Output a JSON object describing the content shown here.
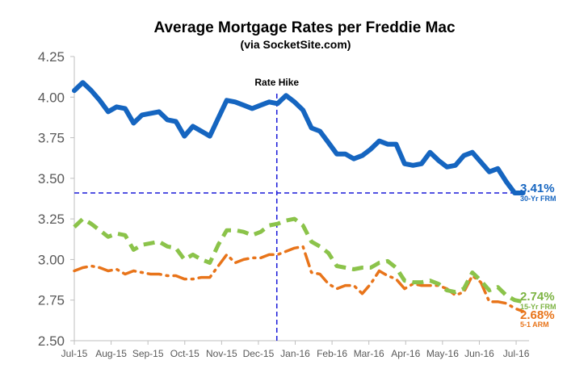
{
  "chart_data": {
    "type": "line",
    "title": "Average Mortgage Rates per Freddie Mac",
    "subtitle": "(via SocketSite.com)",
    "ylim": [
      2.5,
      4.25
    ],
    "yticks": [
      "2.50",
      "2.75",
      "3.00",
      "3.25",
      "3.50",
      "3.75",
      "4.00",
      "4.25"
    ],
    "ytick_values": [
      2.5,
      2.75,
      3.0,
      3.25,
      3.5,
      3.75,
      4.0,
      4.25
    ],
    "xlim": [
      0,
      12.35
    ],
    "x_categories": [
      "Jul-15",
      "Aug-15",
      "Sep-15",
      "Oct-15",
      "Nov-15",
      "Dec-15",
      "Jan-16",
      "Feb-16",
      "Mar-16",
      "Apr-16",
      "May-16",
      "Jun-16",
      "Jul-16"
    ],
    "grid": false,
    "series": [
      {
        "name": "30-Yr FRM",
        "color": "#1565C0",
        "style": "solid",
        "x": [
          0.0,
          0.23,
          0.46,
          0.69,
          0.92,
          1.15,
          1.38,
          1.61,
          1.84,
          2.07,
          2.3,
          2.53,
          2.76,
          2.99,
          3.22,
          3.45,
          3.68,
          3.91,
          4.14,
          4.37,
          4.6,
          4.83,
          5.06,
          5.29,
          5.52,
          5.75,
          5.98,
          6.21,
          6.44,
          6.67,
          6.9,
          7.13,
          7.36,
          7.59,
          7.82,
          8.05,
          8.28,
          8.51,
          8.74,
          8.97,
          9.2,
          9.43,
          9.66,
          9.89,
          10.12,
          10.35,
          10.58,
          10.81,
          11.04,
          11.27,
          11.5,
          11.73,
          11.96,
          12.19
        ],
        "values": [
          4.04,
          4.09,
          4.04,
          3.98,
          3.91,
          3.94,
          3.93,
          3.84,
          3.89,
          3.9,
          3.91,
          3.86,
          3.85,
          3.76,
          3.82,
          3.79,
          3.76,
          3.87,
          3.98,
          3.97,
          3.95,
          3.93,
          3.95,
          3.97,
          3.96,
          4.01,
          3.97,
          3.92,
          3.81,
          3.79,
          3.72,
          3.65,
          3.65,
          3.62,
          3.64,
          3.68,
          3.73,
          3.71,
          3.71,
          3.59,
          3.58,
          3.59,
          3.66,
          3.61,
          3.57,
          3.58,
          3.64,
          3.66,
          3.6,
          3.54,
          3.56,
          3.48,
          3.41,
          3.41
        ]
      },
      {
        "name": "15-Yr FRM",
        "color": "#8BC34A",
        "style": "dashed",
        "x": [
          0.0,
          0.23,
          0.46,
          0.69,
          0.92,
          1.15,
          1.38,
          1.61,
          1.84,
          2.07,
          2.3,
          2.53,
          2.76,
          2.99,
          3.22,
          3.45,
          3.68,
          3.91,
          4.14,
          4.37,
          4.6,
          4.83,
          5.06,
          5.29,
          5.52,
          5.75,
          5.98,
          6.21,
          6.44,
          6.67,
          6.9,
          7.13,
          7.36,
          7.59,
          7.82,
          8.05,
          8.28,
          8.51,
          8.74,
          8.97,
          9.2,
          9.43,
          9.66,
          9.89,
          10.12,
          10.35,
          10.58,
          10.81,
          11.04,
          11.27,
          11.5,
          11.73,
          11.96,
          12.19
        ],
        "values": [
          3.2,
          3.25,
          3.22,
          3.18,
          3.14,
          3.16,
          3.15,
          3.06,
          3.09,
          3.1,
          3.11,
          3.08,
          3.07,
          3.0,
          3.03,
          3.0,
          2.98,
          3.09,
          3.18,
          3.18,
          3.17,
          3.15,
          3.17,
          3.21,
          3.22,
          3.24,
          3.25,
          3.21,
          3.11,
          3.08,
          3.04,
          2.96,
          2.95,
          2.94,
          2.95,
          2.95,
          2.98,
          2.99,
          2.95,
          2.87,
          2.86,
          2.86,
          2.87,
          2.85,
          2.81,
          2.8,
          2.82,
          2.92,
          2.87,
          2.81,
          2.83,
          2.78,
          2.75,
          2.74
        ]
      },
      {
        "name": "5-1 ARM",
        "color": "#E8741A",
        "style": "dash-dot",
        "x": [
          0.0,
          0.23,
          0.46,
          0.69,
          0.92,
          1.15,
          1.38,
          1.61,
          1.84,
          2.07,
          2.3,
          2.53,
          2.76,
          2.99,
          3.22,
          3.45,
          3.68,
          3.91,
          4.14,
          4.37,
          4.6,
          4.83,
          5.06,
          5.29,
          5.52,
          5.75,
          5.98,
          6.21,
          6.44,
          6.67,
          6.9,
          7.13,
          7.36,
          7.59,
          7.82,
          8.05,
          8.28,
          8.51,
          8.74,
          8.97,
          9.2,
          9.43,
          9.66,
          9.89,
          10.12,
          10.35,
          10.58,
          10.81,
          11.04,
          11.27,
          11.5,
          11.73,
          11.96,
          12.19
        ],
        "values": [
          2.93,
          2.95,
          2.96,
          2.95,
          2.93,
          2.94,
          2.91,
          2.93,
          2.92,
          2.91,
          2.91,
          2.9,
          2.9,
          2.88,
          2.88,
          2.89,
          2.89,
          2.96,
          3.03,
          2.98,
          3.0,
          3.01,
          3.01,
          3.03,
          3.03,
          3.05,
          3.07,
          3.08,
          2.92,
          2.91,
          2.85,
          2.82,
          2.84,
          2.84,
          2.79,
          2.85,
          2.93,
          2.9,
          2.88,
          2.82,
          2.85,
          2.84,
          2.84,
          2.84,
          2.82,
          2.78,
          2.8,
          2.9,
          2.86,
          2.74,
          2.74,
          2.73,
          2.7,
          2.68
        ]
      }
    ],
    "reference_lines": [
      {
        "axis": "x",
        "value": 5.5,
        "label": "Rate Hike",
        "color": "#1A1AD9",
        "style": "dashed"
      },
      {
        "axis": "y",
        "value": 3.41,
        "color": "#1A1AD9",
        "style": "dashed"
      }
    ],
    "end_labels": [
      {
        "series": "30-Yr FRM",
        "value_text": "3.41%",
        "name_text": "30-Yr FRM",
        "color": "#1565C0"
      },
      {
        "series": "15-Yr FRM",
        "value_text": "2.74%",
        "name_text": "15-Yr FRM",
        "color": "#7CB342"
      },
      {
        "series": "5-1 ARM",
        "value_text": "2.68%",
        "name_text": "5-1 ARM",
        "color": "#E8741A"
      }
    ],
    "colors": {
      "axis": "#BFBFBF",
      "tick_text": "#595959"
    }
  }
}
